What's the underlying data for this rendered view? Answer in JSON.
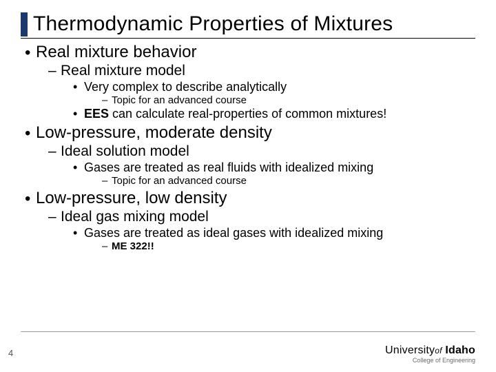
{
  "title": "Thermodynamic Properties of Mixtures",
  "bullets": {
    "b1": "Real mixture behavior",
    "b1_1": "Real mixture model",
    "b1_1_1": "Very complex to describe analytically",
    "b1_1_1_1": "Topic for an advanced course",
    "b1_1_2a": "EES",
    "b1_1_2b": " can calculate real-properties of common mixtures!",
    "b2": "Low-pressure, moderate density",
    "b2_1": "Ideal solution model",
    "b2_1_1": "Gases are treated as real fluids with idealized mixing",
    "b2_1_1_1": "Topic for an advanced course",
    "b3": "Low-pressure, low density",
    "b3_1": "Ideal gas mixing model",
    "b3_1_1": "Gases are treated as ideal gases with idealized mixing",
    "b3_1_1_1": "ME 322!!"
  },
  "slide_number": "4",
  "logo": {
    "university": "University",
    "of": "of",
    "idaho": "Idaho",
    "college": "College of Engineering"
  },
  "colors": {
    "title_bar": "#1a3a6e",
    "text": "#000000",
    "rule": "#9a9a9a",
    "footer_text": "#555555",
    "logo_sub": "#6a6a6a",
    "background": "#ffffff"
  }
}
